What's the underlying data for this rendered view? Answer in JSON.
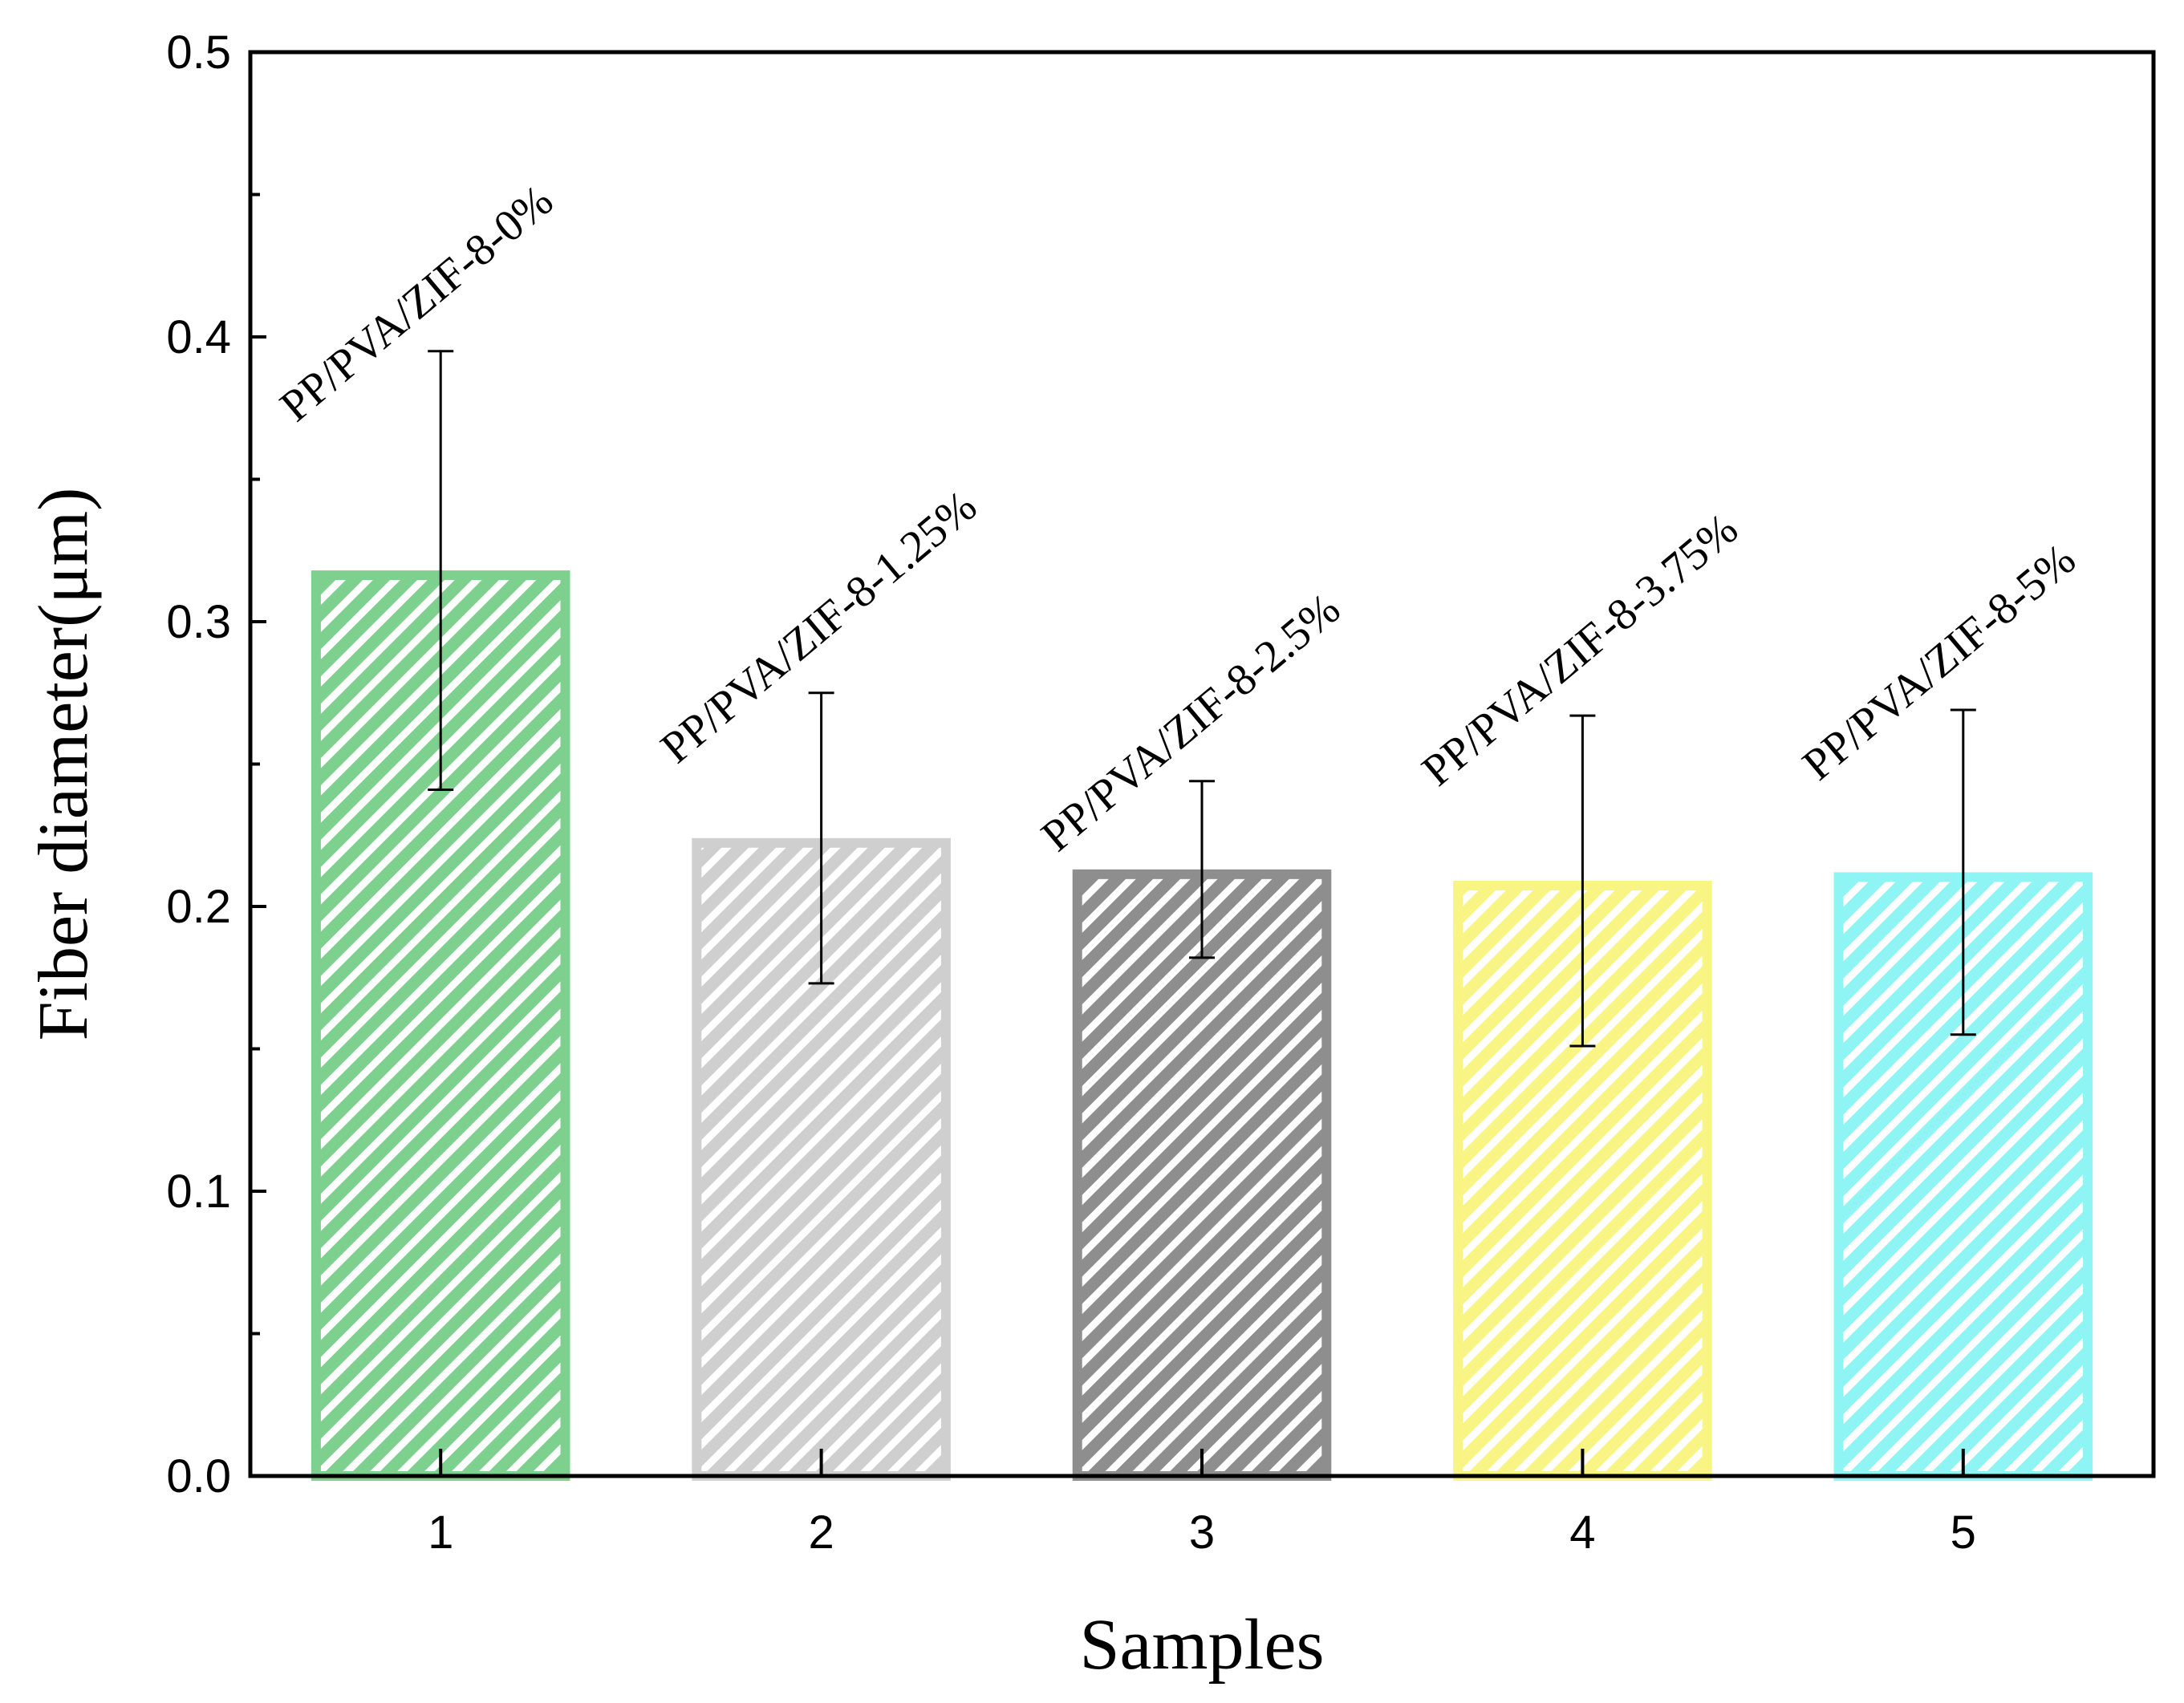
{
  "chart_data": {
    "type": "bar",
    "title": "",
    "xlabel": "Samples",
    "ylabel": "Fiber diameter(μm)",
    "ylim": [
      0,
      0.5
    ],
    "yticks": [
      "0.0",
      "0.1",
      "0.2",
      "0.3",
      "0.4",
      "0.5"
    ],
    "categories": [
      "1",
      "2",
      "3",
      "4",
      "5"
    ],
    "values": [
      0.318,
      0.224,
      0.213,
      0.209,
      0.212
    ],
    "errors": [
      0.077,
      0.051,
      0.031,
      0.058,
      0.057
    ],
    "labels": [
      "PP/PVA/ZIF-8-0%",
      "PP/PVA/ZIF-8-1.25%",
      "PP/PVA/ZIF-8-2.5%",
      "PP/PVA/ZIF-8-3.75%",
      "PP/PVA/ZIF-8-5%"
    ],
    "colors": [
      "#7dd08e",
      "#cfcfcf",
      "#8e8e8e",
      "#f8f585",
      "#8ef4f4"
    ],
    "grid": false,
    "pattern": "diagonal-hatch"
  }
}
